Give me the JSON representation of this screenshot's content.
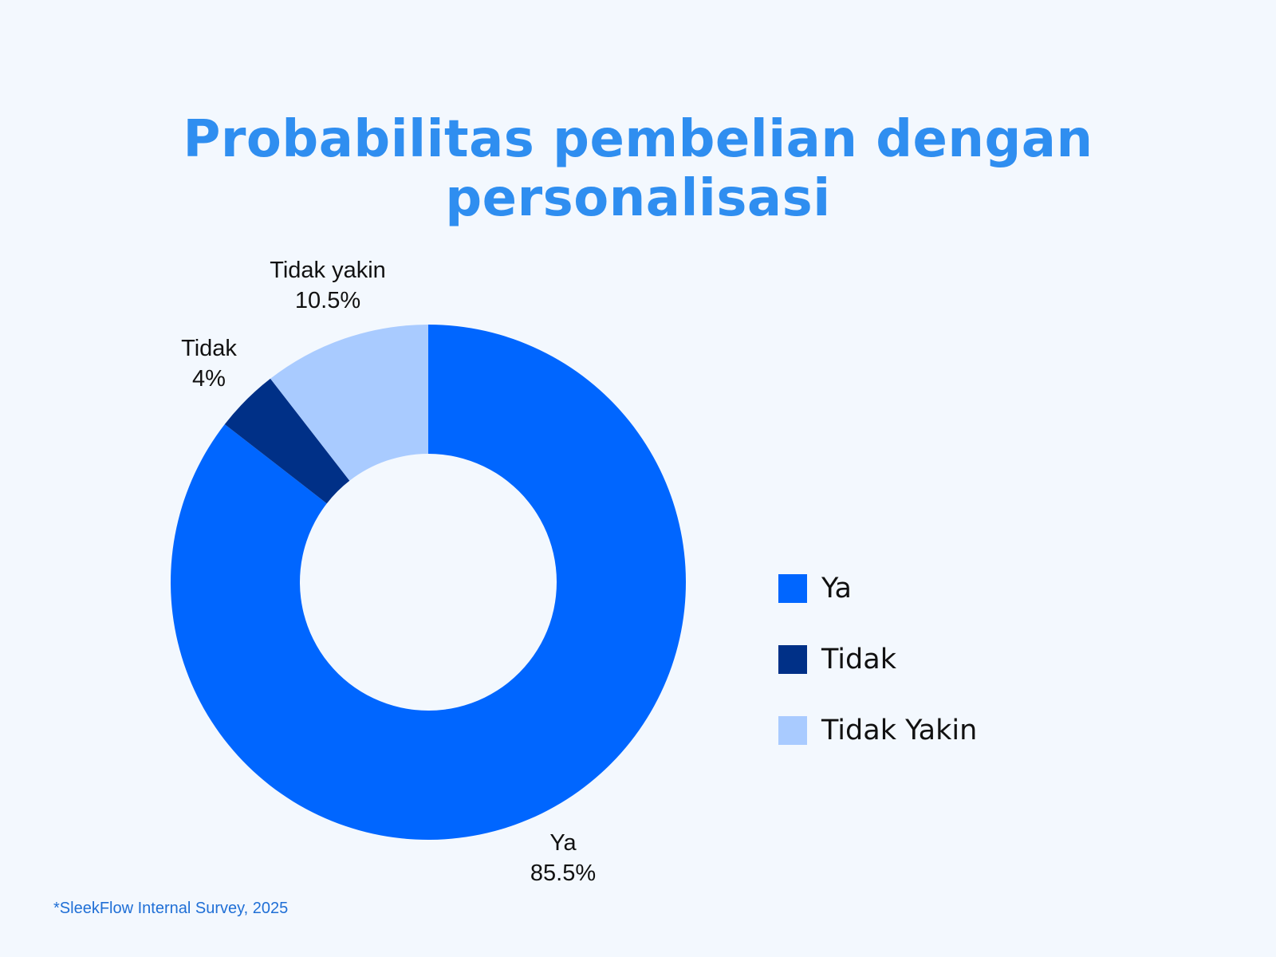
{
  "title": "Probabilitas pembelian dengan personalisasi",
  "source": "*SleekFlow Internal Survey, 2025",
  "colors": {
    "background": "#f3f8fe",
    "title": "#2f8ef0",
    "ya": "#0066ff",
    "tidak": "#003087",
    "tidak_yakin": "#a9cbff"
  },
  "labels": {
    "ya": {
      "name": "Ya",
      "value": "85.5%"
    },
    "tidak": {
      "name": "Tidak",
      "value": "4%"
    },
    "tidak_yakin": {
      "name": "Tidak yakin",
      "value": "10.5%"
    }
  },
  "legend": [
    {
      "label": "Ya",
      "color": "#0066ff"
    },
    {
      "label": "Tidak",
      "color": "#003087"
    },
    {
      "label": "Tidak Yakin",
      "color": "#a9cbff"
    }
  ],
  "chart_data": {
    "type": "pie",
    "subtype": "donut",
    "title": "Probabilitas pembelian dengan personalisasi",
    "categories": [
      "Ya",
      "Tidak",
      "Tidak Yakin"
    ],
    "values": [
      85.5,
      4,
      10.5
    ],
    "unit": "%",
    "colors": [
      "#0066ff",
      "#003087",
      "#a9cbff"
    ],
    "data_labels": [
      "Ya 85.5%",
      "Tidak 4%",
      "Tidak yakin 10.5%"
    ],
    "legend_position": "right",
    "start_angle": "12 o'clock, clockwise",
    "annotation": "*SleekFlow Internal Survey, 2025"
  }
}
